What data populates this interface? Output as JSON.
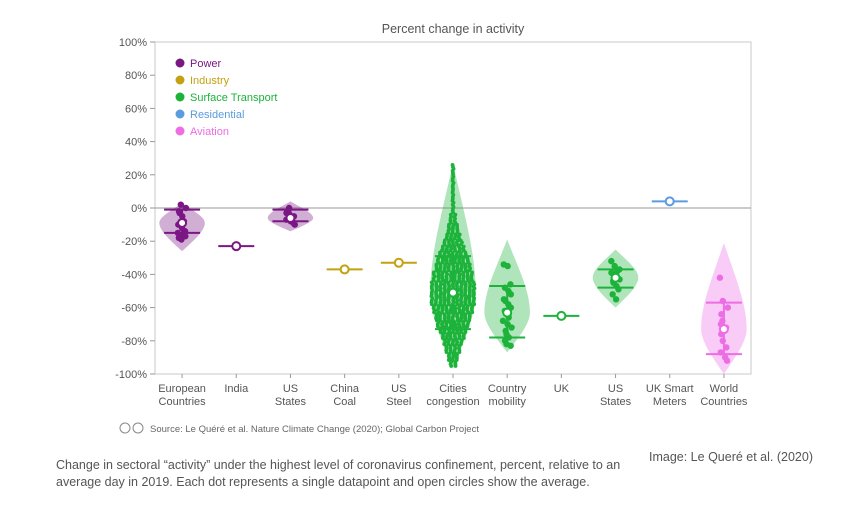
{
  "chart_data": {
    "type": "scatter",
    "title": "Percent change in activity",
    "ylim": [
      -100,
      100
    ],
    "yticks": [
      {
        "v": 100,
        "label": "100%"
      },
      {
        "v": 80,
        "label": "80%"
      },
      {
        "v": 60,
        "label": "60%"
      },
      {
        "v": 40,
        "label": "40%"
      },
      {
        "v": 20,
        "label": "20%"
      },
      {
        "v": 0,
        "label": "0%"
      },
      {
        "v": -20,
        "label": "-20%"
      },
      {
        "v": -40,
        "label": "-40%"
      },
      {
        "v": -60,
        "label": "-60%"
      },
      {
        "v": -80,
        "label": "-80%"
      },
      {
        "v": -100,
        "label": "-100%"
      }
    ],
    "legend": {
      "placement": "top-left",
      "items": [
        {
          "name": "Power",
          "color": "#7b1685"
        },
        {
          "name": "Industry",
          "color": "#c2a212"
        },
        {
          "name": "Surface Transport",
          "color": "#1db33b"
        },
        {
          "name": "Residential",
          "color": "#5b9bdf"
        },
        {
          "name": "Aviation",
          "color": "#ec6de4"
        }
      ]
    },
    "categories": [
      {
        "label": [
          "European",
          "Countries"
        ],
        "sector": "Power",
        "mean": -9,
        "q1": -15,
        "q3": -1,
        "vmin": -26,
        "vmax": 3,
        "points": [
          -2,
          -5,
          -8,
          -10,
          -12,
          -14,
          -15,
          -16,
          -17,
          -18,
          -19,
          0,
          -3,
          2
        ]
      },
      {
        "label": [
          "India"
        ],
        "sector": "Power",
        "mean": -23,
        "q1": -23,
        "q3": -23,
        "points": []
      },
      {
        "label": [
          "US",
          "States"
        ],
        "sector": "Power",
        "mean": -6,
        "q1": -8,
        "q3": -1,
        "vmin": -14,
        "vmax": 4,
        "points": [
          -2,
          -4,
          -5,
          -7,
          -8,
          -9,
          -3,
          0,
          -10,
          -6
        ]
      },
      {
        "label": [
          "China",
          "Coal"
        ],
        "sector": "Industry",
        "mean": -37,
        "q1": -37,
        "q3": -37,
        "points": []
      },
      {
        "label": [
          "US",
          "Steel"
        ],
        "sector": "Industry",
        "mean": -33,
        "q1": -33,
        "q3": -33,
        "points": []
      },
      {
        "label": [
          "Cities",
          "congestion"
        ],
        "sector": "Surface Transport",
        "mean": -51,
        "q1": -73,
        "q3": -29,
        "vmin": -97,
        "vmax": 27,
        "points": []
      },
      {
        "label": [
          "Country",
          "mobility"
        ],
        "sector": "Surface Transport",
        "mean": -63,
        "q1": -78,
        "q3": -47,
        "vmin": -87,
        "vmax": -19,
        "points": [
          -34,
          -35,
          -46,
          -48,
          -50,
          -52,
          -55,
          -58,
          -60,
          -62,
          -64,
          -66,
          -68,
          -70,
          -72,
          -74,
          -76,
          -78,
          -80,
          -82,
          -83,
          -56
        ]
      },
      {
        "label": [
          "UK"
        ],
        "sector": "Surface Transport",
        "mean": -65,
        "q1": -65,
        "q3": -65,
        "points": []
      },
      {
        "label": [
          "US",
          "States"
        ],
        "sector": "Surface Transport",
        "mean": -42,
        "q1": -48,
        "q3": -37,
        "vmin": -60,
        "vmax": -25,
        "points": [
          -32,
          -35,
          -37,
          -39,
          -41,
          -43,
          -45,
          -47,
          -49,
          -52,
          -55,
          -38,
          -44
        ]
      },
      {
        "label": [
          "UK Smart",
          "Meters"
        ],
        "sector": "Residential",
        "mean": 4,
        "q1": 4,
        "q3": 4,
        "points": []
      },
      {
        "label": [
          "World",
          "Countries"
        ],
        "sector": "Aviation",
        "mean": -73,
        "q1": -88,
        "q3": -57,
        "vmin": -100,
        "vmax": -21,
        "points": [
          -42,
          -56,
          -60,
          -64,
          -68,
          -72,
          -76,
          -80,
          -84,
          -87,
          -90,
          -92,
          -70
        ]
      }
    ],
    "source": "Source: Le Quéré et al. Nature Climate Change (2020); Global Carbon Project"
  },
  "caption": "Change in sectoral “activity” under the highest level of coronavirus confinement, percent, relative to an average day in 2019. Each dot represents a single datapoint and open circles show the average.",
  "credit": "Image: Le Queré et al. (2020)"
}
